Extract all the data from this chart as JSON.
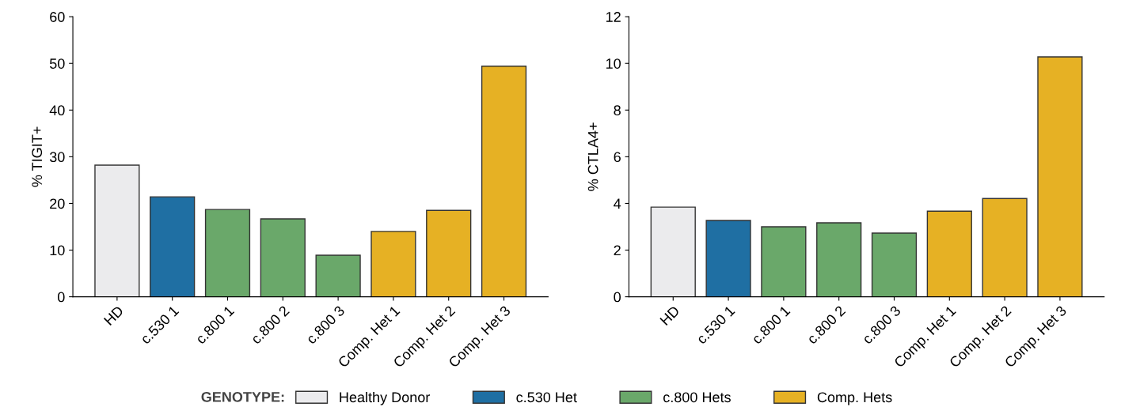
{
  "chart_data": [
    {
      "type": "bar",
      "ylabel": "% TIGIT+",
      "categories": [
        "HD",
        "c.530 1",
        "c.800 1",
        "c.800 2",
        "c.800 3",
        "Comp. Het 1",
        "Comp. Het 2",
        "Comp. Het 3"
      ],
      "stacked": true,
      "ylim": [
        0,
        60
      ],
      "yticks": [
        0,
        10,
        20,
        30,
        40,
        50,
        60
      ],
      "grid": false,
      "legend": "bottom",
      "legend_title": "GENOTYPE:",
      "series": [
        {
          "name": "Healthy Donor",
          "color": "#ebebed",
          "values": [
            28.2,
            null,
            null,
            null,
            null,
            null,
            null,
            null
          ]
        },
        {
          "name": "c.530 Het",
          "color": "#1f6fa3",
          "values": [
            null,
            21.4,
            null,
            null,
            null,
            null,
            null,
            null
          ]
        },
        {
          "name": "c.800 Hets",
          "color": "#6aa86a",
          "values": [
            null,
            null,
            18.7,
            16.7,
            8.9,
            null,
            null,
            null
          ]
        },
        {
          "name": "Comp. Hets",
          "color": "#e6b124",
          "values": [
            null,
            null,
            null,
            null,
            null,
            14.0,
            18.5,
            49.4
          ]
        }
      ]
    },
    {
      "type": "bar",
      "ylabel": "% CTLA4+",
      "categories": [
        "HD",
        "c.530 1",
        "c.800 1",
        "c.800 2",
        "c.800 3",
        "Comp. Het 1",
        "Comp. Het 2",
        "Comp. Het 3"
      ],
      "stacked": true,
      "ylim": [
        0,
        12
      ],
      "yticks": [
        0,
        2,
        4,
        6,
        8,
        10,
        12
      ],
      "grid": false,
      "series": [
        {
          "color": "#ebebed",
          "values": [
            3.84,
            null,
            null,
            null,
            null,
            null,
            null,
            null
          ]
        },
        {
          "color": "#1f6fa3",
          "values": [
            null,
            3.27,
            null,
            null,
            null,
            null,
            null,
            null
          ]
        },
        {
          "color": "#6aa86a",
          "values": [
            null,
            null,
            3.0,
            3.17,
            2.73,
            null,
            null,
            null
          ]
        },
        {
          "color": "#e6b124",
          "values": [
            null,
            null,
            null,
            null,
            null,
            3.67,
            4.21,
            10.28
          ]
        }
      ]
    }
  ]
}
